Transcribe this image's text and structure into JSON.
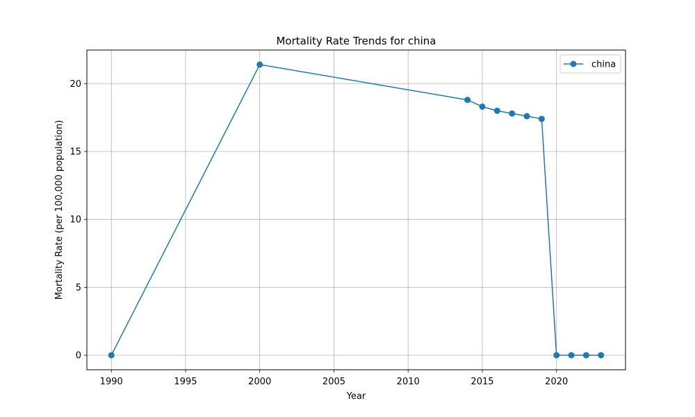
{
  "chart_data": {
    "type": "line",
    "title": "Mortality Rate Trends for china",
    "xlabel": "Year",
    "ylabel": "Mortality Rate (per 100,000 population)",
    "xlim": [
      1988.35,
      2024.65
    ],
    "ylim": [
      -1.07,
      22.47
    ],
    "xticks": [
      1990,
      1995,
      2000,
      2005,
      2010,
      2015,
      2020
    ],
    "yticks": [
      0,
      5,
      10,
      15,
      20
    ],
    "grid": true,
    "legend_position": "top-right",
    "series": [
      {
        "name": "china",
        "color": "#1f77b4",
        "marker": "circle",
        "x": [
          1990,
          2000,
          2014,
          2015,
          2016,
          2017,
          2018,
          2019,
          2020,
          2021,
          2022,
          2023
        ],
        "y": [
          0,
          21.4,
          18.8,
          18.3,
          18.0,
          17.8,
          17.6,
          17.4,
          0,
          0,
          0,
          0
        ]
      }
    ]
  }
}
